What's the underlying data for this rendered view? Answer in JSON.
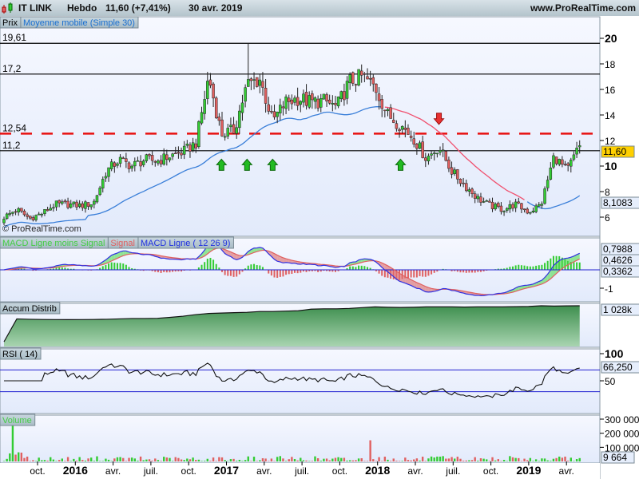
{
  "header": {
    "symbol": "IT LINK",
    "period": "Hebdo",
    "price_change": "11,60 (+7,41%)",
    "date": "30 avr. 2019",
    "site": "www.ProRealTime.com"
  },
  "legends": {
    "price": "Prix",
    "sma": "Moyenne mobile (Simple 30)",
    "macd_hist": "MACD Ligne moins Signal",
    "macd_signal": "Signal",
    "macd_line": "MACD Ligne ( 12 26 9)",
    "accum": "Accum Distrib",
    "rsi": "RSI ( 14)",
    "volume": "Volume",
    "watermark": "© ProRealTime.com"
  },
  "colors": {
    "up": "#33cc33",
    "down": "#e06060",
    "sma": "#3a7fd9",
    "sma_alt": "#f0506e",
    "macd": "#3030e0",
    "signal": "#e06060",
    "level_dashed": "#e81010",
    "last_price_bg": "#ffd000"
  },
  "last_values": {
    "price": "11,60",
    "sma": "8,1083",
    "macd_line": "0,7988",
    "macd_signal": "0,4626",
    "macd_hist": "0,3362",
    "accum": "1 028k",
    "rsi": "66,250",
    "volume": "9 664"
  },
  "levels": [
    {
      "value": 19.61,
      "label": "19,61",
      "style": "solid"
    },
    {
      "value": 17.2,
      "label": "17,2",
      "style": "solid"
    },
    {
      "value": 12.54,
      "label": "12,54",
      "style": "dashed"
    },
    {
      "value": 11.2,
      "label": "11,2",
      "style": "solid"
    }
  ],
  "axes": {
    "price_ticks": [
      {
        "v": 20,
        "t": "20",
        "b": true
      },
      {
        "v": 18,
        "t": "18"
      },
      {
        "v": 16,
        "t": "16"
      },
      {
        "v": 14,
        "t": "14"
      },
      {
        "v": 12,
        "t": "12"
      },
      {
        "v": 10,
        "t": "10",
        "b": true
      },
      {
        "v": 8,
        "t": "8"
      },
      {
        "v": 6,
        "t": "6"
      }
    ],
    "macd_ticks": [
      {
        "v": -1,
        "t": "-1"
      }
    ],
    "rsi_ticks": [
      {
        "v": 100,
        "t": "100",
        "b": true
      },
      {
        "v": 50,
        "t": "50"
      }
    ],
    "volume_ticks": [
      {
        "v": 300000,
        "t": "300 000"
      },
      {
        "v": 200000,
        "t": "200 000"
      },
      {
        "v": 100000,
        "t": "100 000"
      }
    ],
    "time_ticks": [
      {
        "t": "oct.",
        "b": false
      },
      {
        "t": "2016",
        "b": true
      },
      {
        "t": "avr.",
        "b": false
      },
      {
        "t": "juil.",
        "b": false
      },
      {
        "t": "oct.",
        "b": false
      },
      {
        "t": "2017",
        "b": true
      },
      {
        "t": "avr.",
        "b": false
      },
      {
        "t": "juil.",
        "b": false
      },
      {
        "t": "oct.",
        "b": false
      },
      {
        "t": "2018",
        "b": true
      },
      {
        "t": "avr.",
        "b": false
      },
      {
        "t": "juil.",
        "b": false
      },
      {
        "t": "oct.",
        "b": false
      },
      {
        "t": "2019",
        "b": true
      },
      {
        "t": "avr.",
        "b": false
      }
    ]
  },
  "chart_data": {
    "type": "candlestick",
    "frequency": "weekly",
    "range": [
      "2015-07",
      "2019-04"
    ],
    "ylim": [
      4.8,
      21.5
    ],
    "monthly_close": {
      "months": [
        "2015-07",
        "2015-08",
        "2015-09",
        "2015-10",
        "2015-11",
        "2015-12",
        "2016-01",
        "2016-02",
        "2016-03",
        "2016-04",
        "2016-05",
        "2016-06",
        "2016-07",
        "2016-08",
        "2016-09",
        "2016-10",
        "2016-11",
        "2016-12",
        "2017-01",
        "2017-02",
        "2017-03",
        "2017-04",
        "2017-05",
        "2017-06",
        "2017-07",
        "2017-08",
        "2017-09",
        "2017-10",
        "2017-11",
        "2017-12",
        "2018-01",
        "2018-02",
        "2018-03",
        "2018-04",
        "2018-05",
        "2018-06",
        "2018-07",
        "2018-08",
        "2018-09",
        "2018-10",
        "2018-11",
        "2018-12",
        "2019-01",
        "2019-02",
        "2019-03",
        "2019-04"
      ],
      "values": [
        6.0,
        6.6,
        5.9,
        6.3,
        7.0,
        7.0,
        6.9,
        7.1,
        9.6,
        10.5,
        10.0,
        10.5,
        10.4,
        10.8,
        11.1,
        11.8,
        17.0,
        12.5,
        12.8,
        16.4,
        16.8,
        13.5,
        15.0,
        15.3,
        15.0,
        15.1,
        14.6,
        16.6,
        17.0,
        16.2,
        14.0,
        13.2,
        12.2,
        10.6,
        11.5,
        9.6,
        8.5,
        7.5,
        6.9,
        6.6,
        7.0,
        6.4,
        7.0,
        10.8,
        9.6,
        11.6
      ]
    },
    "max_high": 19.61,
    "sma_period": 30,
    "signals": [
      {
        "date": "2016-12",
        "type": "buy",
        "price": 10.1
      },
      {
        "date": "2017-02",
        "type": "buy",
        "price": 10.1
      },
      {
        "date": "2017-04",
        "type": "buy",
        "price": 10.1
      },
      {
        "date": "2018-02",
        "type": "buy",
        "price": 10.1
      },
      {
        "date": "2018-05",
        "type": "sell",
        "price": 13.7
      }
    ],
    "macd": {
      "fast": 12,
      "slow": 26,
      "signal": 9
    },
    "rsi": {
      "period": 14,
      "levels": [
        70,
        30
      ],
      "ylim": [
        0,
        100
      ]
    },
    "accum_distrib_k": [
      100,
      690,
      680,
      675,
      672,
      670,
      672,
      675,
      680,
      690,
      700,
      700,
      705,
      730,
      760,
      800,
      830,
      840,
      850,
      860,
      880,
      880,
      890,
      900,
      940,
      950,
      950,
      960,
      980,
      1000,
      990,
      985,
      990,
      1000,
      1000,
      1000,
      995,
      1000,
      1000,
      1000,
      1005,
      1010,
      1028,
      1020,
      1025,
      1028
    ],
    "volume": {
      "ylim": [
        0,
        320000
      ],
      "peak": 300000
    }
  }
}
